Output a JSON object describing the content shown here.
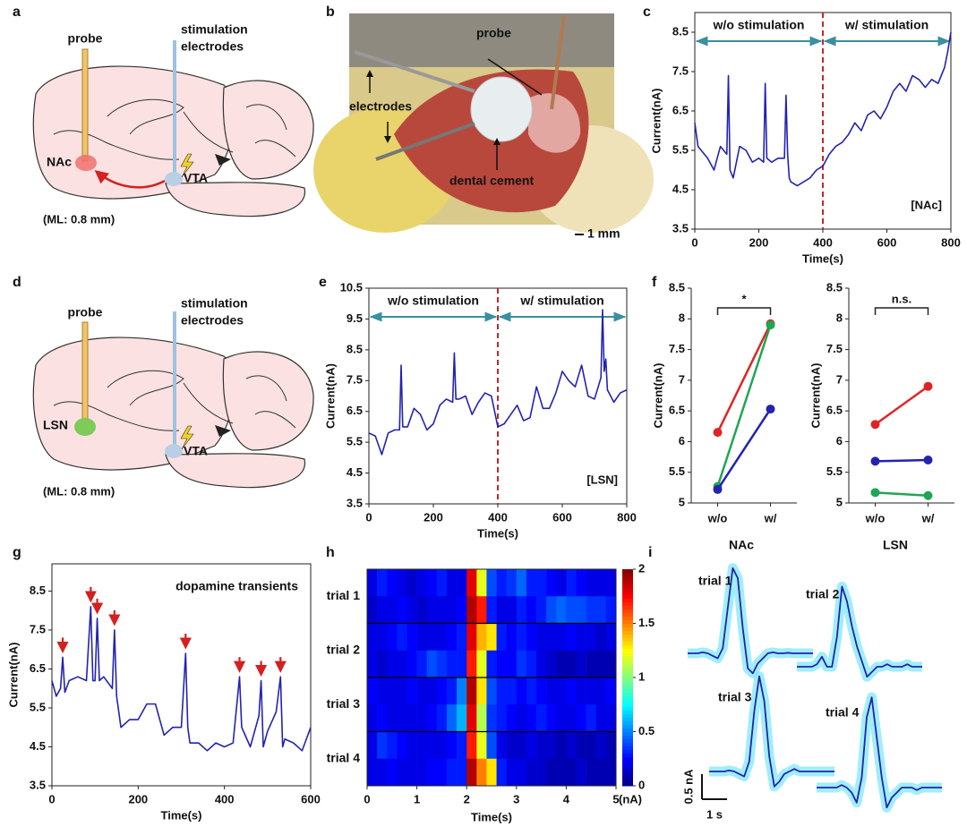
{
  "figure": {
    "labels": [
      "a",
      "b",
      "c",
      "d",
      "e",
      "f",
      "g",
      "h",
      "i"
    ]
  },
  "panel_a": {
    "probe": "probe",
    "stim_line1": "stimulation",
    "stim_line2": "electrodes",
    "target": "NAc",
    "source": "VTA",
    "note": "(ML: 0.8 mm)"
  },
  "panel_b": {
    "probe": "probe",
    "electrodes": "electrodes",
    "cement": "dental cement",
    "scale": "1 mm"
  },
  "panel_d": {
    "probe": "probe",
    "stim_line1": "stimulation",
    "stim_line2": "electrodes",
    "target": "LSN",
    "source": "VTA",
    "note": "(ML: 0.8 mm)"
  },
  "chart_data": [
    {
      "type": "line",
      "box": true,
      "x": [
        0,
        10,
        20,
        40,
        60,
        80,
        100,
        105,
        110,
        120,
        140,
        160,
        180,
        200,
        215,
        220,
        225,
        240,
        260,
        280,
        285,
        290,
        295,
        300,
        320,
        340,
        360,
        380,
        400,
        420,
        440,
        460,
        480,
        500,
        520,
        540,
        560,
        580,
        600,
        620,
        640,
        660,
        680,
        700,
        720,
        740,
        760,
        780,
        790,
        800
      ],
      "series": [
        {
          "color": "#2323b0",
          "values": [
            6.2,
            5.6,
            5.5,
            5.3,
            5.0,
            5.6,
            5.4,
            7.4,
            5.0,
            4.8,
            5.6,
            5.5,
            5.2,
            5.3,
            5.2,
            7.2,
            5.3,
            5.2,
            5.3,
            5.3,
            6.9,
            5.4,
            4.8,
            4.7,
            4.6,
            4.7,
            4.8,
            5.0,
            5.1,
            5.4,
            5.6,
            5.7,
            5.9,
            6.2,
            6.0,
            6.4,
            6.5,
            6.3,
            6.6,
            7.0,
            7.2,
            7.0,
            7.4,
            7.3,
            7.1,
            7.3,
            7.2,
            7.6,
            8.0,
            8.5
          ]
        }
      ],
      "xlim": [
        0,
        800
      ],
      "xticks": [
        0,
        200,
        400,
        600,
        800
      ],
      "ylim": [
        3.5,
        9
      ],
      "yticks": [
        3.5,
        4.5,
        5.5,
        6.5,
        7.5,
        8.5
      ],
      "xlabel": "Time(s)",
      "ylabel": "Current(nA)",
      "stimulation_onset": 400,
      "annotations": {
        "before": "w/o stimulation",
        "after": "w/ stimulation",
        "region": "[NAc]"
      }
    },
    {
      "type": "line",
      "box": true,
      "x": [
        0,
        20,
        40,
        60,
        80,
        95,
        100,
        105,
        120,
        140,
        160,
        180,
        200,
        220,
        240,
        260,
        265,
        270,
        280,
        300,
        320,
        340,
        360,
        380,
        400,
        420,
        440,
        460,
        480,
        500,
        520,
        540,
        560,
        580,
        600,
        620,
        640,
        660,
        680,
        700,
        720,
        725,
        730,
        735,
        740,
        760,
        780,
        800
      ],
      "series": [
        {
          "color": "#2323b0",
          "values": [
            5.8,
            5.7,
            5.1,
            5.8,
            5.9,
            5.9,
            8.0,
            6.0,
            6.0,
            6.6,
            6.4,
            5.9,
            6.1,
            6.7,
            6.9,
            6.8,
            8.4,
            6.9,
            6.9,
            7.0,
            6.4,
            6.8,
            7.1,
            7.0,
            6.0,
            6.1,
            6.4,
            6.7,
            6.2,
            6.3,
            7.3,
            6.6,
            6.6,
            7.1,
            7.8,
            7.5,
            7.3,
            8.0,
            7.0,
            6.9,
            7.6,
            9.8,
            7.8,
            8.2,
            7.2,
            6.8,
            7.1,
            7.2
          ]
        }
      ],
      "xlim": [
        0,
        800
      ],
      "xticks": [
        0,
        200,
        400,
        600,
        800
      ],
      "ylim": [
        3.5,
        10.5
      ],
      "yticks": [
        3.5,
        4.5,
        5.5,
        6.5,
        7.5,
        8.5,
        9.5,
        10.5
      ],
      "xlabel": "Time(s)",
      "ylabel": "Current(nA)",
      "stimulation_onset": 400,
      "annotations": {
        "before": "w/o stimulation",
        "after": "w/ stimulation",
        "region": "[LSN]"
      }
    },
    {
      "type": "line",
      "box": false,
      "markers": true,
      "categories": [
        "w/o",
        "w/"
      ],
      "series": [
        {
          "color": "#e02424",
          "values": [
            6.15,
            7.92
          ]
        },
        {
          "color": "#22a455",
          "values": [
            5.27,
            7.9
          ]
        },
        {
          "color": "#2323b0",
          "values": [
            5.22,
            6.53
          ]
        }
      ],
      "ylim": [
        5,
        8.5
      ],
      "yticks": [
        5,
        5.5,
        6,
        6.5,
        7,
        7.5,
        8,
        8.5
      ],
      "ylabel": "Current(nA)",
      "significance": "*"
    },
    {
      "type": "line",
      "box": false,
      "markers": true,
      "categories": [
        "w/o",
        "w/"
      ],
      "series": [
        {
          "color": "#e02424",
          "values": [
            6.28,
            6.9
          ]
        },
        {
          "color": "#2323b0",
          "values": [
            5.68,
            5.7
          ]
        },
        {
          "color": "#22a455",
          "values": [
            5.17,
            5.12
          ]
        }
      ],
      "ylim": [
        5,
        8.5
      ],
      "yticks": [
        5,
        5.5,
        6,
        6.5,
        7,
        7.5,
        8,
        8.5
      ],
      "ylabel": "Current(nA)",
      "significance": "n.s."
    },
    {
      "type": "line",
      "box": true,
      "x": [
        0,
        10,
        20,
        25,
        30,
        40,
        60,
        80,
        90,
        95,
        100,
        105,
        110,
        120,
        140,
        145,
        150,
        160,
        180,
        200,
        220,
        240,
        260,
        280,
        300,
        310,
        315,
        320,
        340,
        360,
        380,
        400,
        420,
        435,
        440,
        460,
        480,
        485,
        490,
        500,
        520,
        530,
        535,
        540,
        560,
        580,
        600
      ],
      "series": [
        {
          "color": "#2323b0",
          "values": [
            6.2,
            5.8,
            6.0,
            6.8,
            5.9,
            6.2,
            6.3,
            6.2,
            8.1,
            6.2,
            6.2,
            7.8,
            6.2,
            6.3,
            6.0,
            7.5,
            5.8,
            5.0,
            5.2,
            5.2,
            5.6,
            5.6,
            4.8,
            5.0,
            5.0,
            6.9,
            5.0,
            4.6,
            4.6,
            4.4,
            4.6,
            4.5,
            4.6,
            6.3,
            5.0,
            4.5,
            5.3,
            6.2,
            4.5,
            4.9,
            5.4,
            6.3,
            4.5,
            4.7,
            4.6,
            4.4,
            5.0
          ]
        }
      ],
      "xlim": [
        0,
        600
      ],
      "xticks": [
        0,
        200,
        400,
        600
      ],
      "ylim": [
        3.5,
        9.2
      ],
      "yticks": [
        3.5,
        4.5,
        5.5,
        6.5,
        7.5,
        8.5
      ],
      "xlabel": "Time(s)",
      "ylabel": "Current(nA)",
      "note": "dopamine transients",
      "transients": [
        25,
        90,
        105,
        145,
        310,
        435,
        485,
        530
      ]
    },
    {
      "type": "heatmap",
      "categories": [
        "trial 1",
        "trial 2",
        "trial 3",
        "trial 4"
      ],
      "xlim": [
        0,
        5
      ],
      "xticks": [
        0,
        1,
        2,
        3,
        4,
        5
      ],
      "xlabel": "Time(s)",
      "z": [
        [
          [
            0.2,
            0.3,
            0.25,
            0.2,
            0.15,
            0.2,
            0.25,
            0.3,
            0.2,
            0.2,
            1.8,
            1.2,
            0.4,
            0.3,
            0.35,
            0.45,
            0.3,
            0.3,
            0.25,
            0.2,
            0.3,
            0.25,
            0.2,
            0.2,
            0.2
          ],
          [
            0.15,
            0.2,
            0.2,
            0.25,
            0.2,
            0.15,
            0.2,
            0.2,
            0.2,
            0.25,
            1.9,
            1.7,
            0.3,
            0.2,
            0.2,
            0.3,
            0.25,
            0.3,
            0.4,
            0.45,
            0.4,
            0.4,
            0.35,
            0.35,
            0.3
          ]
        ],
        [
          [
            0.2,
            0.2,
            0.25,
            0.3,
            0.25,
            0.2,
            0.2,
            0.2,
            0.25,
            0.3,
            1.8,
            1.4,
            1.3,
            0.3,
            0.25,
            0.3,
            0.25,
            0.2,
            0.2,
            0.2,
            0.25,
            0.2,
            0.2,
            0.15,
            0.2
          ],
          [
            0.2,
            0.15,
            0.2,
            0.2,
            0.25,
            0.3,
            0.4,
            0.35,
            0.3,
            0.3,
            1.7,
            1.2,
            0.3,
            0.25,
            0.25,
            0.35,
            0.3,
            0.2,
            0.15,
            0.1,
            0.1,
            0.15,
            0.1,
            0.1,
            0.1
          ]
        ],
        [
          [
            0.25,
            0.2,
            0.2,
            0.2,
            0.25,
            0.2,
            0.2,
            0.25,
            0.3,
            0.5,
            1.9,
            1.3,
            0.4,
            0.3,
            0.3,
            0.25,
            0.3,
            0.25,
            0.2,
            0.2,
            0.25,
            0.2,
            0.2,
            0.2,
            0.25
          ],
          [
            0.2,
            0.25,
            0.2,
            0.2,
            0.2,
            0.2,
            0.25,
            0.3,
            0.45,
            0.6,
            1.8,
            1.1,
            0.35,
            0.3,
            0.25,
            0.2,
            0.25,
            0.3,
            0.25,
            0.2,
            0.2,
            0.25,
            0.3,
            0.2,
            0.2
          ]
        ],
        [
          [
            0.2,
            0.35,
            0.3,
            0.25,
            0.2,
            0.2,
            0.2,
            0.2,
            0.25,
            0.3,
            1.7,
            1.2,
            0.4,
            0.2,
            0.15,
            0.15,
            0.2,
            0.15,
            0.15,
            0.1,
            0.15,
            0.1,
            0.1,
            0.15,
            0.1
          ],
          [
            0.2,
            0.2,
            0.25,
            0.2,
            0.2,
            0.2,
            0.25,
            0.25,
            0.3,
            0.3,
            1.9,
            1.5,
            1.3,
            0.3,
            0.2,
            0.2,
            0.15,
            0.15,
            0.1,
            0.1,
            0.1,
            0.15,
            0.1,
            0.1,
            0.1
          ]
        ]
      ],
      "colorbar": {
        "lim": [
          0,
          2
        ],
        "ticks": [
          0,
          0.5,
          1,
          1.5,
          2
        ],
        "label": "(nA)"
      }
    },
    {
      "type": "waveform",
      "titles": [
        "NAc",
        "LSN"
      ],
      "x": [
        0,
        0.2,
        0.4,
        0.6,
        0.8,
        1,
        1.2,
        1.4,
        1.6,
        1.8,
        2,
        2.2,
        2.4,
        2.6,
        2.8,
        3,
        3.2,
        3.4,
        3.6,
        3.8,
        4,
        4.2,
        4.4,
        4.6,
        4.8,
        5
      ],
      "series": [
        {
          "name": "trial 1",
          "color": "#2323b0",
          "values": [
            0,
            0,
            0,
            0.02,
            0,
            -0.05,
            -0.1,
            0.1,
            0.9,
            1.7,
            1.5,
            0.5,
            -0.3,
            -0.4,
            -0.2,
            -0.1,
            0,
            0.02,
            0,
            0,
            0.01,
            0,
            0,
            0,
            0,
            0
          ]
        },
        {
          "name": "trial 2",
          "color": "#2323b0",
          "values": [
            0,
            0,
            0,
            0,
            0.05,
            0.2,
            0,
            0,
            0.6,
            1.6,
            1.3,
            0.8,
            0.4,
            0.1,
            -0.2,
            -0.1,
            0,
            0,
            0.05,
            0,
            0,
            0,
            0.05,
            0,
            0,
            0
          ]
        },
        {
          "name": "trial 3",
          "color": "#2323b0",
          "values": [
            0,
            0,
            0,
            0,
            0.02,
            0,
            -0.05,
            -0.1,
            0.2,
            1.2,
            1.9,
            1.4,
            0.3,
            -0.3,
            -0.2,
            -0.05,
            0,
            0.05,
            0,
            0,
            0,
            0,
            0,
            0,
            0,
            0
          ]
        },
        {
          "name": "trial 4",
          "color": "#2323b0",
          "values": [
            0,
            0,
            0,
            0,
            0,
            0.05,
            0,
            -0.1,
            -0.3,
            0.2,
            1.4,
            1.8,
            1.0,
            0.2,
            -0.4,
            -0.2,
            -0.1,
            0,
            0,
            0,
            -0.05,
            0,
            0,
            0,
            0,
            0
          ]
        }
      ],
      "scale_y": {
        "value": 0.5,
        "label": "0.5 nA"
      },
      "scale_x": {
        "value": 1,
        "label": "1 s"
      }
    }
  ]
}
